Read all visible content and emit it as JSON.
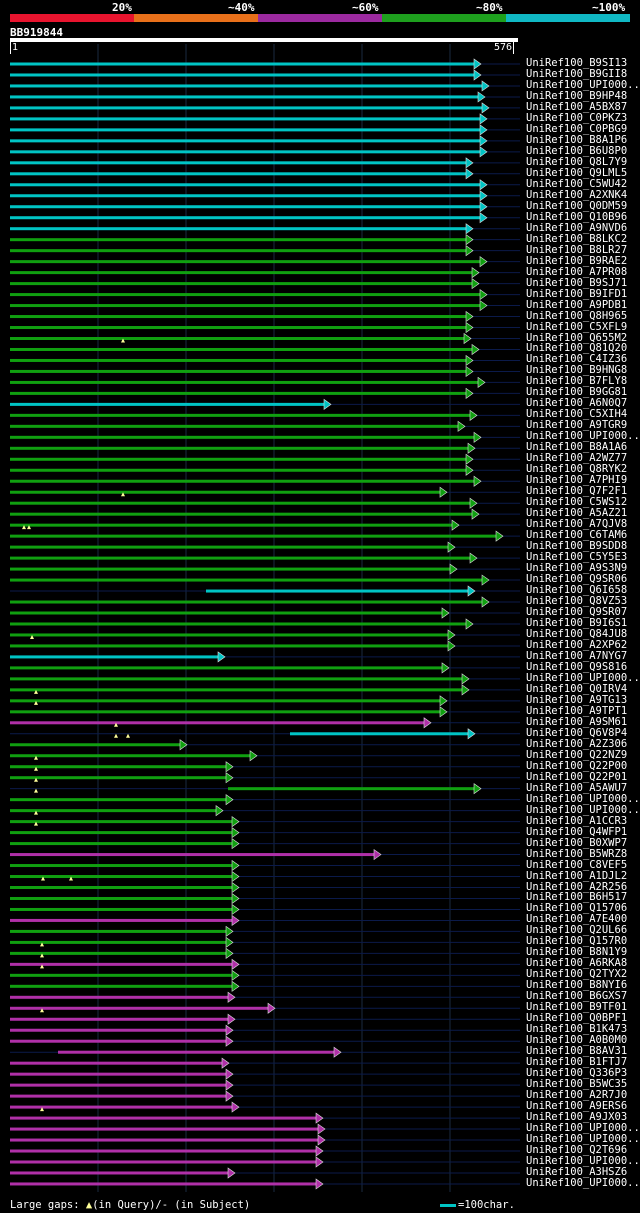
{
  "legend": {
    "labels": [
      "20%",
      "~40%",
      "~60%",
      "~80%",
      "~100%"
    ],
    "colors": [
      "#e8142e",
      "#e8701a",
      "#9c2aa0",
      "#1ea01e",
      "#10b8c4"
    ]
  },
  "query": {
    "id": "BB919844",
    "start": "1",
    "end": "576"
  },
  "footer": {
    "gaps_prefix": "Large gaps: ",
    "gaps_query": "(in Query)/",
    "gaps_subject": "- (in Subject)",
    "scale_text": "=100char."
  },
  "hits": [
    {
      "label": "UniRef100_B9SI13",
      "c": "cyan",
      "s": 0,
      "e": 470
    },
    {
      "label": "UniRef100_B9GII8",
      "c": "cyan",
      "s": 0,
      "e": 470
    },
    {
      "label": "UniRef100_UPI000..",
      "c": "cyan",
      "s": 0,
      "e": 478
    },
    {
      "label": "UniRef100_B9HP48",
      "c": "cyan",
      "s": 0,
      "e": 474
    },
    {
      "label": "UniRef100_A5BX87",
      "c": "cyan",
      "s": 0,
      "e": 478
    },
    {
      "label": "UniRef100_C0PKZ3",
      "c": "cyan",
      "s": 0,
      "e": 476
    },
    {
      "label": "UniRef100_C0PBG9",
      "c": "cyan",
      "s": 0,
      "e": 476
    },
    {
      "label": "UniRef100_B8A1P6",
      "c": "cyan",
      "s": 0,
      "e": 476
    },
    {
      "label": "UniRef100_B6U8P0",
      "c": "cyan",
      "s": 0,
      "e": 476
    },
    {
      "label": "UniRef100_Q8L7Y9",
      "c": "cyan",
      "s": 0,
      "e": 462
    },
    {
      "label": "UniRef100_Q9LML5",
      "c": "cyan",
      "s": 0,
      "e": 462
    },
    {
      "label": "UniRef100_C5WU42",
      "c": "cyan",
      "s": 0,
      "e": 476
    },
    {
      "label": "UniRef100_A2XNK4",
      "c": "cyan",
      "s": 0,
      "e": 476
    },
    {
      "label": "UniRef100_Q0DM59",
      "c": "cyan",
      "s": 0,
      "e": 476
    },
    {
      "label": "UniRef100_Q10B96",
      "c": "cyan",
      "s": 0,
      "e": 476
    },
    {
      "label": "UniRef100_A9NVD6",
      "c": "cyan",
      "s": 0,
      "e": 462
    },
    {
      "label": "UniRef100_B8LKC2",
      "c": "green",
      "s": 0,
      "e": 462
    },
    {
      "label": "UniRef100_B8LR27",
      "c": "green",
      "s": 0,
      "e": 462
    },
    {
      "label": "UniRef100_B9RAE2",
      "c": "green",
      "s": 0,
      "e": 476
    },
    {
      "label": "UniRef100_A7PR08",
      "c": "green",
      "s": 0,
      "e": 468
    },
    {
      "label": "UniRef100_B9SJ71",
      "c": "green",
      "s": 0,
      "e": 468
    },
    {
      "label": "UniRef100_B9IFD1",
      "c": "green",
      "s": 0,
      "e": 476
    },
    {
      "label": "UniRef100_A9PDB1",
      "c": "green",
      "s": 0,
      "e": 476
    },
    {
      "label": "UniRef100_Q8H965",
      "c": "green",
      "s": 0,
      "e": 462
    },
    {
      "label": "UniRef100_C5XFL9",
      "c": "green",
      "s": 0,
      "e": 462
    },
    {
      "label": "UniRef100_Q655M2",
      "c": "green",
      "s": 0,
      "e": 460,
      "q": [
        113
      ]
    },
    {
      "label": "UniRef100_Q81Q20",
      "c": "green",
      "s": 0,
      "e": 468
    },
    {
      "label": "UniRef100_C4IZ36",
      "c": "green",
      "s": 0,
      "e": 462
    },
    {
      "label": "UniRef100_B9HNG8",
      "c": "green",
      "s": 0,
      "e": 462
    },
    {
      "label": "UniRef100_B7FLY8",
      "c": "green",
      "s": 0,
      "e": 474
    },
    {
      "label": "UniRef100_B9GG81",
      "c": "green",
      "s": 0,
      "e": 462
    },
    {
      "label": "UniRef100_A6N0Q7",
      "c": "cyan",
      "s": 0,
      "e": 320
    },
    {
      "label": "UniRef100_C5XIH4",
      "c": "green",
      "s": 0,
      "e": 466
    },
    {
      "label": "UniRef100_A9TGR9",
      "c": "green",
      "s": 0,
      "e": 454
    },
    {
      "label": "UniRef100_UPI000..",
      "c": "green",
      "s": 0,
      "e": 470
    },
    {
      "label": "UniRef100_B8A1A6",
      "c": "green",
      "s": 0,
      "e": 464
    },
    {
      "label": "UniRef100_A2WZ77",
      "c": "green",
      "s": 0,
      "e": 462
    },
    {
      "label": "UniRef100_Q8RYK2",
      "c": "green",
      "s": 0,
      "e": 462
    },
    {
      "label": "UniRef100_A7PHI9",
      "c": "green",
      "s": 0,
      "e": 470
    },
    {
      "label": "UniRef100_Q7F2F1",
      "c": "green",
      "s": 0,
      "e": 436,
      "q": [
        113
      ]
    },
    {
      "label": "UniRef100_C5WS12",
      "c": "green",
      "s": 0,
      "e": 466
    },
    {
      "label": "UniRef100_A5AZ21",
      "c": "green",
      "s": 0,
      "e": 468
    },
    {
      "label": "UniRef100_A7QJV8",
      "c": "green",
      "s": 0,
      "e": 448,
      "q": [
        14,
        19
      ]
    },
    {
      "label": "UniRef100_C6TAM6",
      "c": "green",
      "s": 0,
      "e": 492
    },
    {
      "label": "UniRef100_B9SDD8",
      "c": "green",
      "s": 0,
      "e": 444
    },
    {
      "label": "UniRef100_C5Y5E3",
      "c": "green",
      "s": 0,
      "e": 466
    },
    {
      "label": "UniRef100_A9S3N9",
      "c": "green",
      "s": 0,
      "e": 446
    },
    {
      "label": "UniRef100_Q9SR06",
      "c": "green",
      "s": 0,
      "e": 478
    },
    {
      "label": "UniRef100_Q6I658",
      "c": "cyan",
      "s": 196,
      "e": 464
    },
    {
      "label": "UniRef100_Q8VZ53",
      "c": "green",
      "s": 0,
      "e": 478
    },
    {
      "label": "UniRef100_Q9SR07",
      "c": "green",
      "s": 0,
      "e": 438
    },
    {
      "label": "UniRef100_B9I6S1",
      "c": "green",
      "s": 0,
      "e": 462
    },
    {
      "label": "UniRef100_Q84JU8",
      "c": "green",
      "s": 0,
      "e": 444,
      "q": [
        22
      ]
    },
    {
      "label": "UniRef100_A2XP62",
      "c": "green",
      "s": 0,
      "e": 444
    },
    {
      "label": "UniRef100_A7NYG7",
      "c": "cyan",
      "s": 0,
      "e": 214
    },
    {
      "label": "UniRef100_Q9S816",
      "c": "green",
      "s": 0,
      "e": 438
    },
    {
      "label": "UniRef100_UPI000..",
      "c": "green",
      "s": 0,
      "e": 458
    },
    {
      "label": "UniRef100_Q0IRV4",
      "c": "green",
      "s": 0,
      "e": 458,
      "q": [
        26
      ]
    },
    {
      "label": "UniRef100_A9TG13",
      "c": "green",
      "s": 0,
      "e": 436,
      "q": [
        26
      ]
    },
    {
      "label": "UniRef100_A9TPT1",
      "c": "green",
      "s": 0,
      "e": 436
    },
    {
      "label": "UniRef100_A9SM61",
      "c": "purple",
      "s": 0,
      "e": 420,
      "q": [
        106
      ]
    },
    {
      "label": "UniRef100_Q6V8P4",
      "c": "cyan",
      "s": 280,
      "e": 464,
      "q": [
        106,
        118
      ]
    },
    {
      "label": "UniRef100_A2Z306",
      "c": "green",
      "s": 0,
      "e": 176
    },
    {
      "label": "UniRef100_Q22NZ9",
      "c": "green",
      "s": 0,
      "e": 246,
      "q": [
        26
      ]
    },
    {
      "label": "UniRef100_Q22P00",
      "c": "green",
      "s": 0,
      "e": 222,
      "q": [
        26
      ]
    },
    {
      "label": "UniRef100_Q22P01",
      "c": "green",
      "s": 0,
      "e": 222,
      "q": [
        26
      ]
    },
    {
      "label": "UniRef100_A5AWU7",
      "c": "green",
      "s": 218,
      "e": 470,
      "q": [
        26
      ]
    },
    {
      "label": "UniRef100_UPI000..",
      "c": "green",
      "s": 0,
      "e": 222
    },
    {
      "label": "UniRef100_UPI000..",
      "c": "green",
      "s": 0,
      "e": 212,
      "q": [
        26
      ]
    },
    {
      "label": "UniRef100_A1CCR3",
      "c": "green",
      "s": 0,
      "e": 228,
      "q": [
        26
      ]
    },
    {
      "label": "UniRef100_Q4WFP1",
      "c": "green",
      "s": 0,
      "e": 228
    },
    {
      "label": "UniRef100_B0XWP7",
      "c": "green",
      "s": 0,
      "e": 228
    },
    {
      "label": "UniRef100_B5WRZ8",
      "c": "purple",
      "s": 0,
      "e": 370
    },
    {
      "label": "UniRef100_C8VEF5",
      "c": "green",
      "s": 0,
      "e": 228
    },
    {
      "label": "UniRef100_A1DJL2",
      "c": "green",
      "s": 0,
      "e": 228,
      "q": [
        33,
        61
      ]
    },
    {
      "label": "UniRef100_A2R256",
      "c": "green",
      "s": 0,
      "e": 228
    },
    {
      "label": "UniRef100_B6H517",
      "c": "green",
      "s": 0,
      "e": 228
    },
    {
      "label": "UniRef100_Q15706",
      "c": "green",
      "s": 0,
      "e": 228
    },
    {
      "label": "UniRef100_A7E400",
      "c": "purple",
      "s": 0,
      "e": 228
    },
    {
      "label": "UniRef100_Q2UL66",
      "c": "green",
      "s": 0,
      "e": 222
    },
    {
      "label": "UniRef100_Q157R0",
      "c": "green",
      "s": 0,
      "e": 222,
      "q": [
        32
      ]
    },
    {
      "label": "UniRef100_B8N1Y9",
      "c": "green",
      "s": 0,
      "e": 222,
      "q": [
        32
      ]
    },
    {
      "label": "UniRef100_A6RKA8",
      "c": "purple",
      "s": 0,
      "e": 228,
      "q": [
        32
      ]
    },
    {
      "label": "UniRef100_Q2TYX2",
      "c": "green",
      "s": 0,
      "e": 228
    },
    {
      "label": "UniRef100_B8NYI6",
      "c": "green",
      "s": 0,
      "e": 228
    },
    {
      "label": "UniRef100_B6GXS7",
      "c": "purple",
      "s": 0,
      "e": 224
    },
    {
      "label": "UniRef100_B9TF01",
      "c": "purple",
      "s": 0,
      "e": 264,
      "q": [
        32
      ]
    },
    {
      "label": "UniRef100_Q0BPF1",
      "c": "purple",
      "s": 0,
      "e": 224
    },
    {
      "label": "UniRef100_B1K473",
      "c": "purple",
      "s": 0,
      "e": 222
    },
    {
      "label": "UniRef100_A0B0M0",
      "c": "purple",
      "s": 0,
      "e": 222
    },
    {
      "label": "UniRef100_B8AV31",
      "c": "purple",
      "s": 48,
      "e": 330
    },
    {
      "label": "UniRef100_B1FTJ7",
      "c": "purple",
      "s": 0,
      "e": 218
    },
    {
      "label": "UniRef100_Q336P3",
      "c": "purple",
      "s": 0,
      "e": 222
    },
    {
      "label": "UniRef100_B5WC35",
      "c": "purple",
      "s": 0,
      "e": 222
    },
    {
      "label": "UniRef100_A2R7J0",
      "c": "purple",
      "s": 0,
      "e": 222
    },
    {
      "label": "UniRef100_A9ERS6",
      "c": "purple",
      "s": 0,
      "e": 228,
      "q": [
        32
      ]
    },
    {
      "label": "UniRef100_A9JX03",
      "c": "purple",
      "s": 0,
      "e": 312
    },
    {
      "label": "UniRef100_UPI000..",
      "c": "purple",
      "s": 0,
      "e": 314
    },
    {
      "label": "UniRef100_UPI000..",
      "c": "purple",
      "s": 0,
      "e": 314
    },
    {
      "label": "UniRef100_Q2T696",
      "c": "purple",
      "s": 0,
      "e": 312
    },
    {
      "label": "UniRef100_UPI000..",
      "c": "purple",
      "s": 0,
      "e": 312
    },
    {
      "label": "UniRef100_A3HSZ6",
      "c": "purple",
      "s": 0,
      "e": 224
    },
    {
      "label": "UniRef100_UPI000..",
      "c": "purple",
      "s": 0,
      "e": 312
    }
  ]
}
